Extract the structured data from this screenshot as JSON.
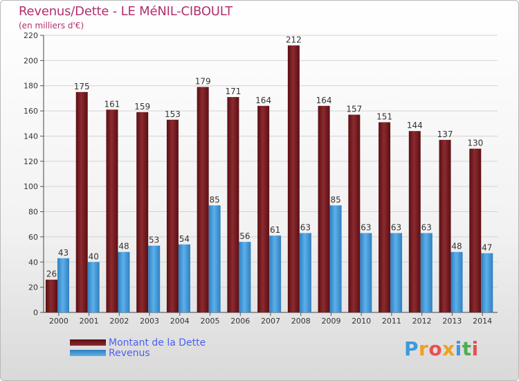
{
  "chart_data": {
    "type": "bar",
    "title": "Revenus/Dette - LE MéNIL-CIBOULT",
    "subtitle": "(en milliers d'€)",
    "categories": [
      "2000",
      "2001",
      "2002",
      "2003",
      "2004",
      "2005",
      "2006",
      "2007",
      "2008",
      "2009",
      "2010",
      "2011",
      "2012",
      "2013",
      "2014"
    ],
    "series": [
      {
        "name": "Montant de la Dette",
        "color": "#7a1a1f",
        "values": [
          26,
          175,
          161,
          159,
          153,
          179,
          171,
          164,
          212,
          164,
          157,
          151,
          144,
          137,
          130
        ]
      },
      {
        "name": "Revenus",
        "color": "#3d99dc",
        "values": [
          43,
          40,
          48,
          53,
          54,
          85,
          56,
          61,
          63,
          85,
          63,
          63,
          63,
          48,
          47
        ]
      }
    ],
    "ylim": [
      0,
      220
    ],
    "yticks": [
      0,
      20,
      40,
      60,
      80,
      100,
      120,
      140,
      160,
      180,
      200,
      220
    ],
    "grid": true,
    "legend": "bottom-left"
  },
  "logo": {
    "text": "Proxiti",
    "letters": [
      "P",
      "r",
      "o",
      "x",
      "i",
      "t",
      "i"
    ],
    "colors": [
      "#3d99dc",
      "#f0a020",
      "#e85050",
      "#f0a020",
      "#3d99dc",
      "#4cae4c",
      "#e85050"
    ]
  }
}
